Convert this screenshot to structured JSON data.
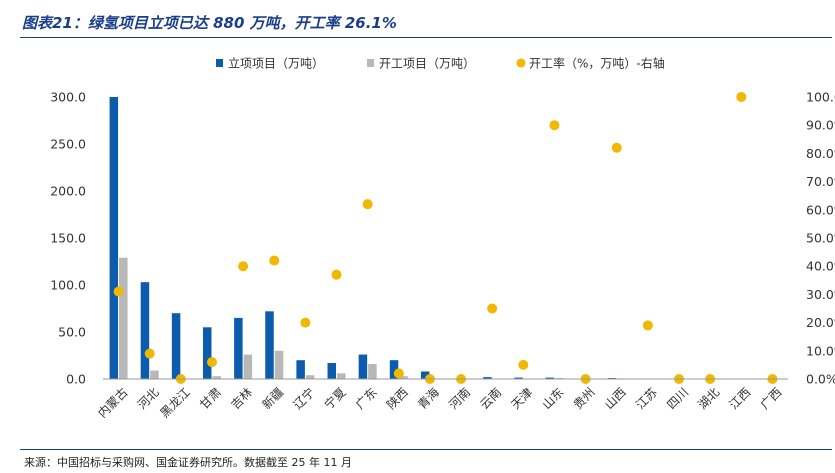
{
  "figure_title": "图表21：绿氢项目立项已达 880 万吨，开工率 26.1%",
  "source_note": "来源：中国招标与采购网、国金证券研究所。数据截至 25 年 11 月",
  "chart_data": {
    "type": "bar",
    "title": "",
    "xlabel": "",
    "ylabel": "",
    "categories": [
      "内蒙古",
      "河北",
      "黑龙江",
      "甘肃",
      "吉林",
      "新疆",
      "辽宁",
      "宁夏",
      "广东",
      "陕西",
      "青海",
      "河南",
      "云南",
      "天津",
      "山东",
      "贵州",
      "山西",
      "江苏",
      "四川",
      "湖北",
      "江西",
      "广西"
    ],
    "series": [
      {
        "name": "立项项目（万吨）",
        "type": "bar",
        "axis": "left",
        "color": "#0b5cad",
        "values": [
          300,
          103,
          70,
          55,
          65,
          72,
          20,
          17,
          26,
          20,
          8,
          0.5,
          2,
          1.5,
          1.5,
          0.5,
          1,
          0.5,
          0.5,
          0.3,
          0.5,
          0.3
        ]
      },
      {
        "name": "开工项目（万吨）",
        "type": "bar",
        "axis": "left",
        "color": "#b8b8b8",
        "values": [
          129,
          9,
          0,
          3,
          26,
          30,
          4,
          6,
          16,
          3,
          0,
          0,
          0,
          0,
          1,
          0,
          0,
          0,
          0,
          0,
          0,
          0
        ]
      },
      {
        "name": "开工率（%，万吨）-右轴",
        "type": "scatter",
        "axis": "right",
        "color": "#f0b800",
        "values": [
          31,
          9,
          0,
          6,
          40,
          42,
          20,
          37,
          62,
          2,
          0,
          0,
          25,
          5,
          90,
          0,
          82,
          19,
          0,
          0,
          100,
          0
        ]
      }
    ],
    "y_left": {
      "range": [
        0,
        300
      ],
      "ticks": [
        "0.0",
        "50.0",
        "100.0",
        "150.0",
        "200.0",
        "250.0",
        "300.0"
      ]
    },
    "y_right": {
      "range": [
        0,
        100
      ],
      "ticks": [
        "0.0%",
        "10.0%",
        "20.0%",
        "30.0%",
        "40.0%",
        "50.0%",
        "60.0%",
        "70.0%",
        "80.0%",
        "90.0%",
        "100.0%"
      ]
    },
    "grid": false,
    "legend_position": "top-center"
  }
}
